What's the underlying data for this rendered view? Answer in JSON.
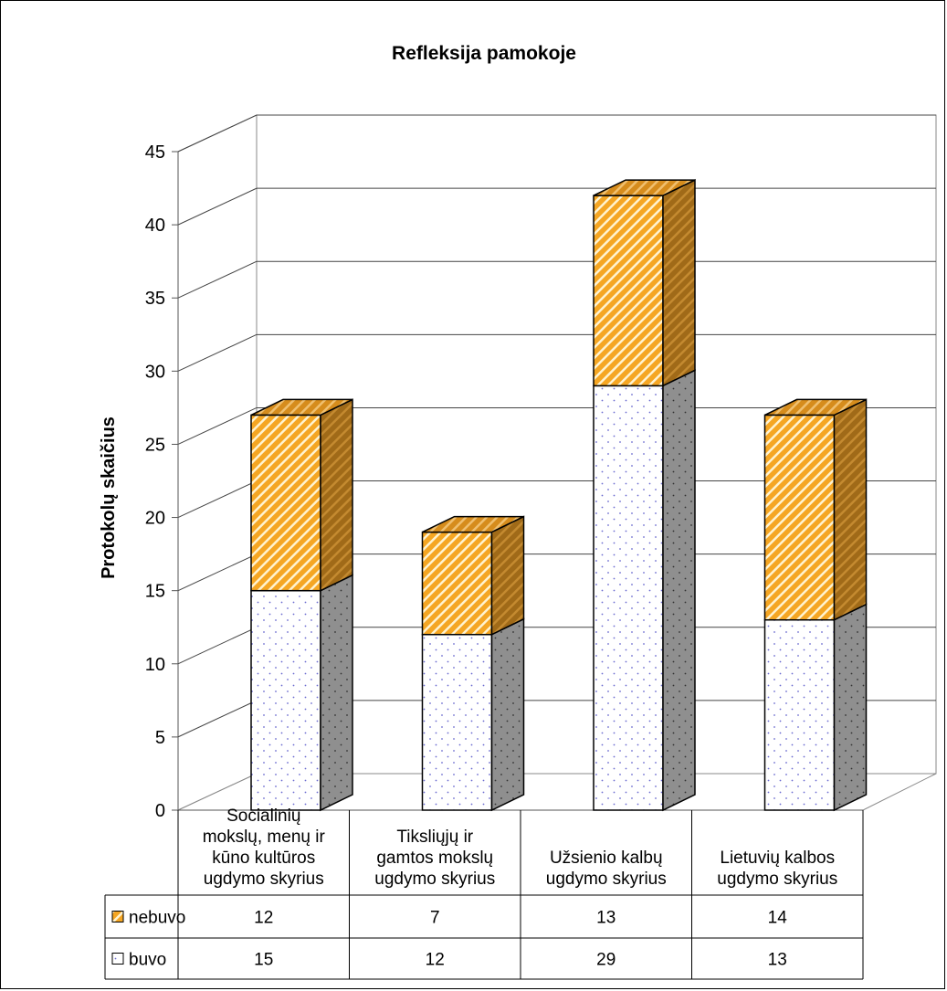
{
  "chart_data": {
    "type": "bar",
    "stacked": true,
    "title": "Refleksija pamokoje",
    "ylabel": "Protokolų skaičius",
    "xlabel": "",
    "ylim": [
      0,
      45
    ],
    "yticks": [
      0,
      5,
      10,
      15,
      20,
      25,
      30,
      35,
      40,
      45
    ],
    "grid": true,
    "categories": [
      [
        "Socialinių",
        "mokslų, menų ir",
        "kūno kultūros",
        "ugdymo skyrius"
      ],
      [
        "Tiksliųjų ir",
        "gamtos mokslų",
        "ugdymo skyrius"
      ],
      [
        "Užsienio kalbų",
        "ugdymo skyrius"
      ],
      [
        "Lietuvių kalbos",
        "ugdymo skyrius"
      ]
    ],
    "series": [
      {
        "name": "nebuvo",
        "values": [
          12,
          7,
          13,
          14
        ],
        "color": "#f5a623",
        "pattern": "diagonal-stripes"
      },
      {
        "name": "buvo",
        "values": [
          15,
          12,
          29,
          13
        ],
        "color": "#ffffff",
        "pattern": "dots"
      }
    ],
    "legend": "data-table-left",
    "colors": {
      "orange": "#f5a623",
      "stripe": "#fff2cc",
      "side_dark": "#8a8a8a",
      "dot": "#6b6bd0"
    }
  }
}
